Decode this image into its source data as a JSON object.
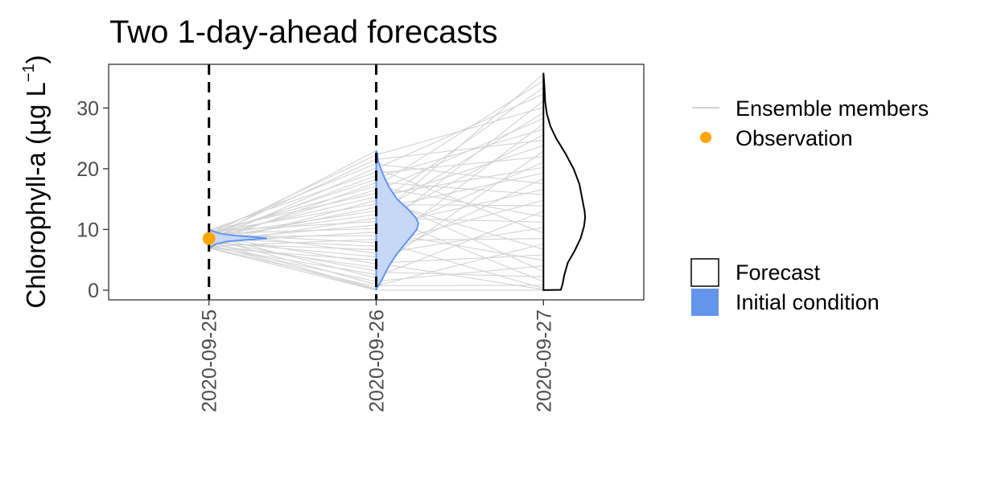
{
  "chart_data": {
    "type": "line",
    "title": "Two 1-day-ahead forecasts",
    "ylabel_main": "Chlorophyll-a (",
    "ylabel_mu": "μ",
    "ylabel_rest": "g L",
    "ylabel_sup": "−1",
    "ylabel_close": ")",
    "x_dates": [
      "2020-09-25",
      "2020-09-26",
      "2020-09-27"
    ],
    "x_tick_labels": [
      "2020-09-25",
      "2020-09-26",
      "2020-09-27"
    ],
    "xlim_days": [
      -0.6,
      2.6
    ],
    "y_ticks": [
      0,
      10,
      20,
      30
    ],
    "y_tick_labels": [
      "0",
      "10",
      "20",
      "30"
    ],
    "ylim": [
      -1.6,
      37.2
    ],
    "forecast_dates": [
      "2020-09-25",
      "2020-09-26"
    ],
    "grid": false,
    "observation": {
      "x": "2020-09-25",
      "y": 8.5
    },
    "initial_condition_density": [
      [
        6.8,
        0.0
      ],
      [
        7.2,
        0.05
      ],
      [
        7.6,
        0.12
      ],
      [
        8.0,
        0.3
      ],
      [
        8.3,
        0.65
      ],
      [
        8.5,
        1.0
      ],
      [
        8.7,
        0.85
      ],
      [
        9.0,
        0.45
      ],
      [
        9.3,
        0.2
      ],
      [
        9.7,
        0.07
      ],
      [
        10.0,
        0.0
      ]
    ],
    "forecast1_density": [
      [
        0.0,
        0.0
      ],
      [
        0.5,
        0.02
      ],
      [
        1.2,
        0.07
      ],
      [
        2.5,
        0.14
      ],
      [
        4.0,
        0.22
      ],
      [
        6.0,
        0.36
      ],
      [
        8.0,
        0.53
      ],
      [
        10.0,
        0.7
      ],
      [
        11.0,
        0.73
      ],
      [
        12.0,
        0.68
      ],
      [
        13.5,
        0.53
      ],
      [
        15.0,
        0.36
      ],
      [
        17.0,
        0.22
      ],
      [
        19.0,
        0.12
      ],
      [
        20.5,
        0.06
      ],
      [
        21.5,
        0.03
      ],
      [
        22.5,
        0.02
      ],
      [
        23.0,
        0.0
      ]
    ],
    "forecast2_density": [
      [
        0.0,
        0.0
      ],
      [
        0.05,
        0.3
      ],
      [
        1.0,
        0.33
      ],
      [
        2.5,
        0.36
      ],
      [
        4.5,
        0.42
      ],
      [
        6.5,
        0.54
      ],
      [
        8.5,
        0.64
      ],
      [
        10.5,
        0.7
      ],
      [
        12.0,
        0.72
      ],
      [
        13.0,
        0.71
      ],
      [
        15.0,
        0.67
      ],
      [
        17.5,
        0.62
      ],
      [
        20.0,
        0.52
      ],
      [
        22.5,
        0.38
      ],
      [
        25.0,
        0.22
      ],
      [
        27.0,
        0.12
      ],
      [
        29.0,
        0.06
      ],
      [
        31.0,
        0.03
      ],
      [
        33.0,
        0.02
      ],
      [
        34.5,
        0.01
      ],
      [
        35.8,
        0.0
      ]
    ],
    "ensemble_members": [
      {
        "start": 8.5,
        "end": 35.6
      },
      {
        "start": 9.2,
        "end": 34.5
      },
      {
        "start": 8.8,
        "end": 33.4
      },
      {
        "start": 9.6,
        "end": 32.3
      },
      {
        "start": 8.2,
        "end": 31.2
      },
      {
        "start": 9.9,
        "end": 30.1
      },
      {
        "start": 8.6,
        "end": 29.2
      },
      {
        "start": 9.1,
        "end": 28.3
      },
      {
        "start": 7.8,
        "end": 27.4
      },
      {
        "start": 9.4,
        "end": 26.5
      },
      {
        "start": 8.4,
        "end": 25.6
      },
      {
        "start": 9.8,
        "end": 24.7
      },
      {
        "start": 8.9,
        "end": 23.8
      },
      {
        "start": 7.4,
        "end": 22.9
      },
      {
        "start": 9.5,
        "end": 22.0
      },
      {
        "start": 8.1,
        "end": 21.1
      },
      {
        "start": 9.0,
        "end": 20.2
      },
      {
        "start": 8.7,
        "end": 19.3
      },
      {
        "start": 7.6,
        "end": 18.4
      },
      {
        "start": 9.7,
        "end": 17.5
      },
      {
        "start": 8.3,
        "end": 16.6
      },
      {
        "start": 9.3,
        "end": 15.7
      },
      {
        "start": 7.9,
        "end": 14.8
      },
      {
        "start": 8.8,
        "end": 13.9
      },
      {
        "start": 7.2,
        "end": 13.0
      },
      {
        "start": 9.2,
        "end": 12.1
      },
      {
        "start": 8.5,
        "end": 11.2
      },
      {
        "start": 7.7,
        "end": 10.3
      },
      {
        "start": 9.6,
        "end": 9.4
      },
      {
        "start": 8.0,
        "end": 8.5
      },
      {
        "start": 7.0,
        "end": 7.6
      },
      {
        "start": 8.9,
        "end": 6.7
      },
      {
        "start": 7.5,
        "end": 5.8
      },
      {
        "start": 8.2,
        "end": 4.9
      },
      {
        "start": 7.1,
        "end": 4.0
      },
      {
        "start": 9.0,
        "end": 3.1
      },
      {
        "start": 7.3,
        "end": 2.2
      },
      {
        "start": 8.6,
        "end": 1.4
      },
      {
        "start": 7.0,
        "end": 0.8
      },
      {
        "start": 8.0,
        "end": 0.3
      },
      {
        "start": 7.5,
        "end": 0.1
      },
      {
        "start": 6.9,
        "end": 0.0
      }
    ],
    "legend": {
      "ensemble_label": "Ensemble members",
      "observation_label": "Observation",
      "forecast_label": "Forecast",
      "initial_condition_label": "Initial condition"
    },
    "colors": {
      "ensemble": "#d3d3d3",
      "observation": "#ffa500",
      "initial_condition_fill": "#c6d8f6",
      "initial_condition_line": "#6495ed",
      "initial_condition_key": "#6495ed",
      "forecast_line": "#000000",
      "panel_border": "#333333"
    }
  }
}
